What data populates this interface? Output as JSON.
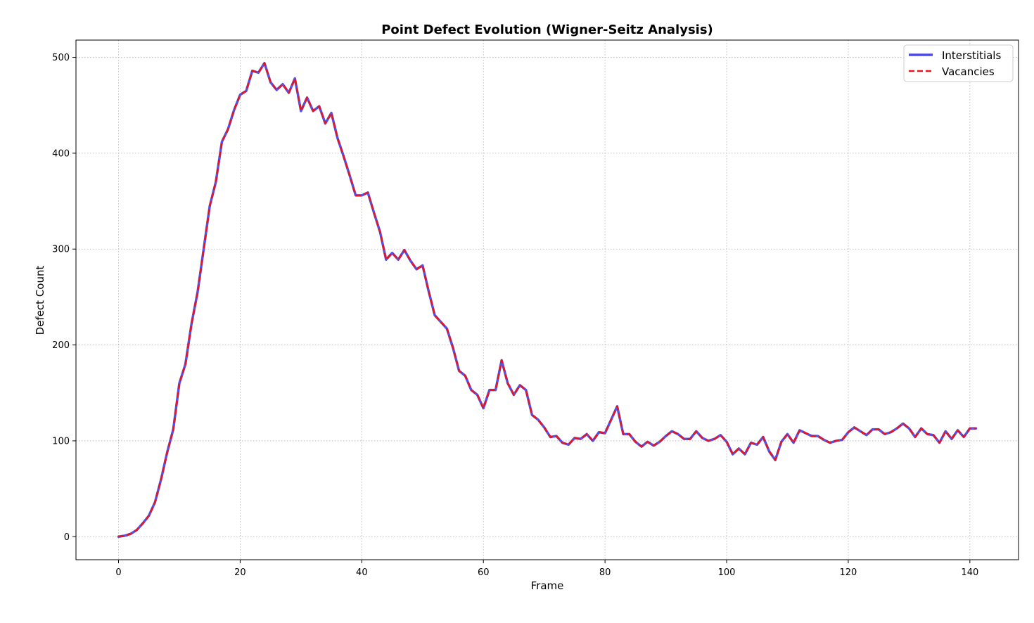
{
  "chart_data": {
    "type": "line",
    "title": "Point Defect Evolution (Wigner-Seitz Analysis)",
    "xlabel": "Frame",
    "ylabel": "Defect Count",
    "xlim": [
      -7,
      148
    ],
    "ylim": [
      -24,
      518
    ],
    "xticks": [
      0,
      20,
      40,
      60,
      80,
      100,
      120,
      140
    ],
    "yticks": [
      0,
      100,
      200,
      300,
      400,
      500
    ],
    "grid": true,
    "legend": "top-right",
    "series": [
      {
        "name": "Interstitials",
        "color": "#4a4ae8",
        "style": "solid",
        "values": [
          0,
          1,
          3,
          7,
          14,
          22,
          36,
          60,
          88,
          112,
          160,
          180,
          222,
          255,
          300,
          345,
          370,
          412,
          425,
          445,
          461,
          465,
          486,
          484,
          494,
          474,
          466,
          472,
          463,
          478,
          444,
          458,
          444,
          449,
          431,
          442,
          416,
          397,
          377,
          356,
          356,
          359,
          338,
          318,
          289,
          296,
          289,
          299,
          288,
          279,
          283,
          256,
          231,
          224,
          217,
          197,
          173,
          168,
          153,
          148,
          134,
          153,
          153,
          184,
          160,
          148,
          158,
          153,
          127,
          122,
          114,
          104,
          105,
          98,
          96,
          103,
          102,
          107,
          100,
          109,
          108,
          122,
          136,
          107,
          107,
          99,
          94,
          99,
          95,
          99,
          105,
          110,
          107,
          102,
          102,
          110,
          103,
          100,
          102,
          106,
          99,
          86,
          92,
          86,
          98,
          96,
          104,
          89,
          80,
          99,
          107,
          98,
          111,
          108,
          105,
          105,
          101,
          98,
          100,
          101,
          109,
          114,
          110,
          106,
          112,
          112,
          107,
          109,
          113,
          118,
          113,
          104,
          113,
          107,
          106,
          98,
          110,
          102,
          111,
          104,
          113,
          113
        ]
      },
      {
        "name": "Vacancies",
        "color": "#e8141e",
        "style": "dashed",
        "values": [
          0,
          1,
          3,
          7,
          14,
          22,
          36,
          60,
          88,
          112,
          160,
          180,
          222,
          255,
          300,
          345,
          370,
          412,
          425,
          445,
          461,
          465,
          486,
          484,
          494,
          474,
          466,
          472,
          463,
          478,
          444,
          458,
          444,
          449,
          431,
          442,
          416,
          397,
          377,
          356,
          356,
          359,
          338,
          318,
          289,
          296,
          289,
          299,
          288,
          279,
          283,
          256,
          231,
          224,
          217,
          197,
          173,
          168,
          153,
          148,
          134,
          153,
          153,
          184,
          160,
          148,
          158,
          153,
          127,
          122,
          114,
          104,
          105,
          98,
          96,
          103,
          102,
          107,
          100,
          109,
          108,
          122,
          136,
          107,
          107,
          99,
          94,
          99,
          95,
          99,
          105,
          110,
          107,
          102,
          102,
          110,
          103,
          100,
          102,
          106,
          99,
          86,
          92,
          86,
          98,
          96,
          104,
          89,
          80,
          99,
          107,
          98,
          111,
          108,
          105,
          105,
          101,
          98,
          100,
          101,
          109,
          114,
          110,
          106,
          112,
          112,
          107,
          109,
          113,
          118,
          113,
          104,
          113,
          107,
          106,
          98,
          110,
          102,
          111,
          104,
          113,
          113
        ]
      }
    ]
  }
}
